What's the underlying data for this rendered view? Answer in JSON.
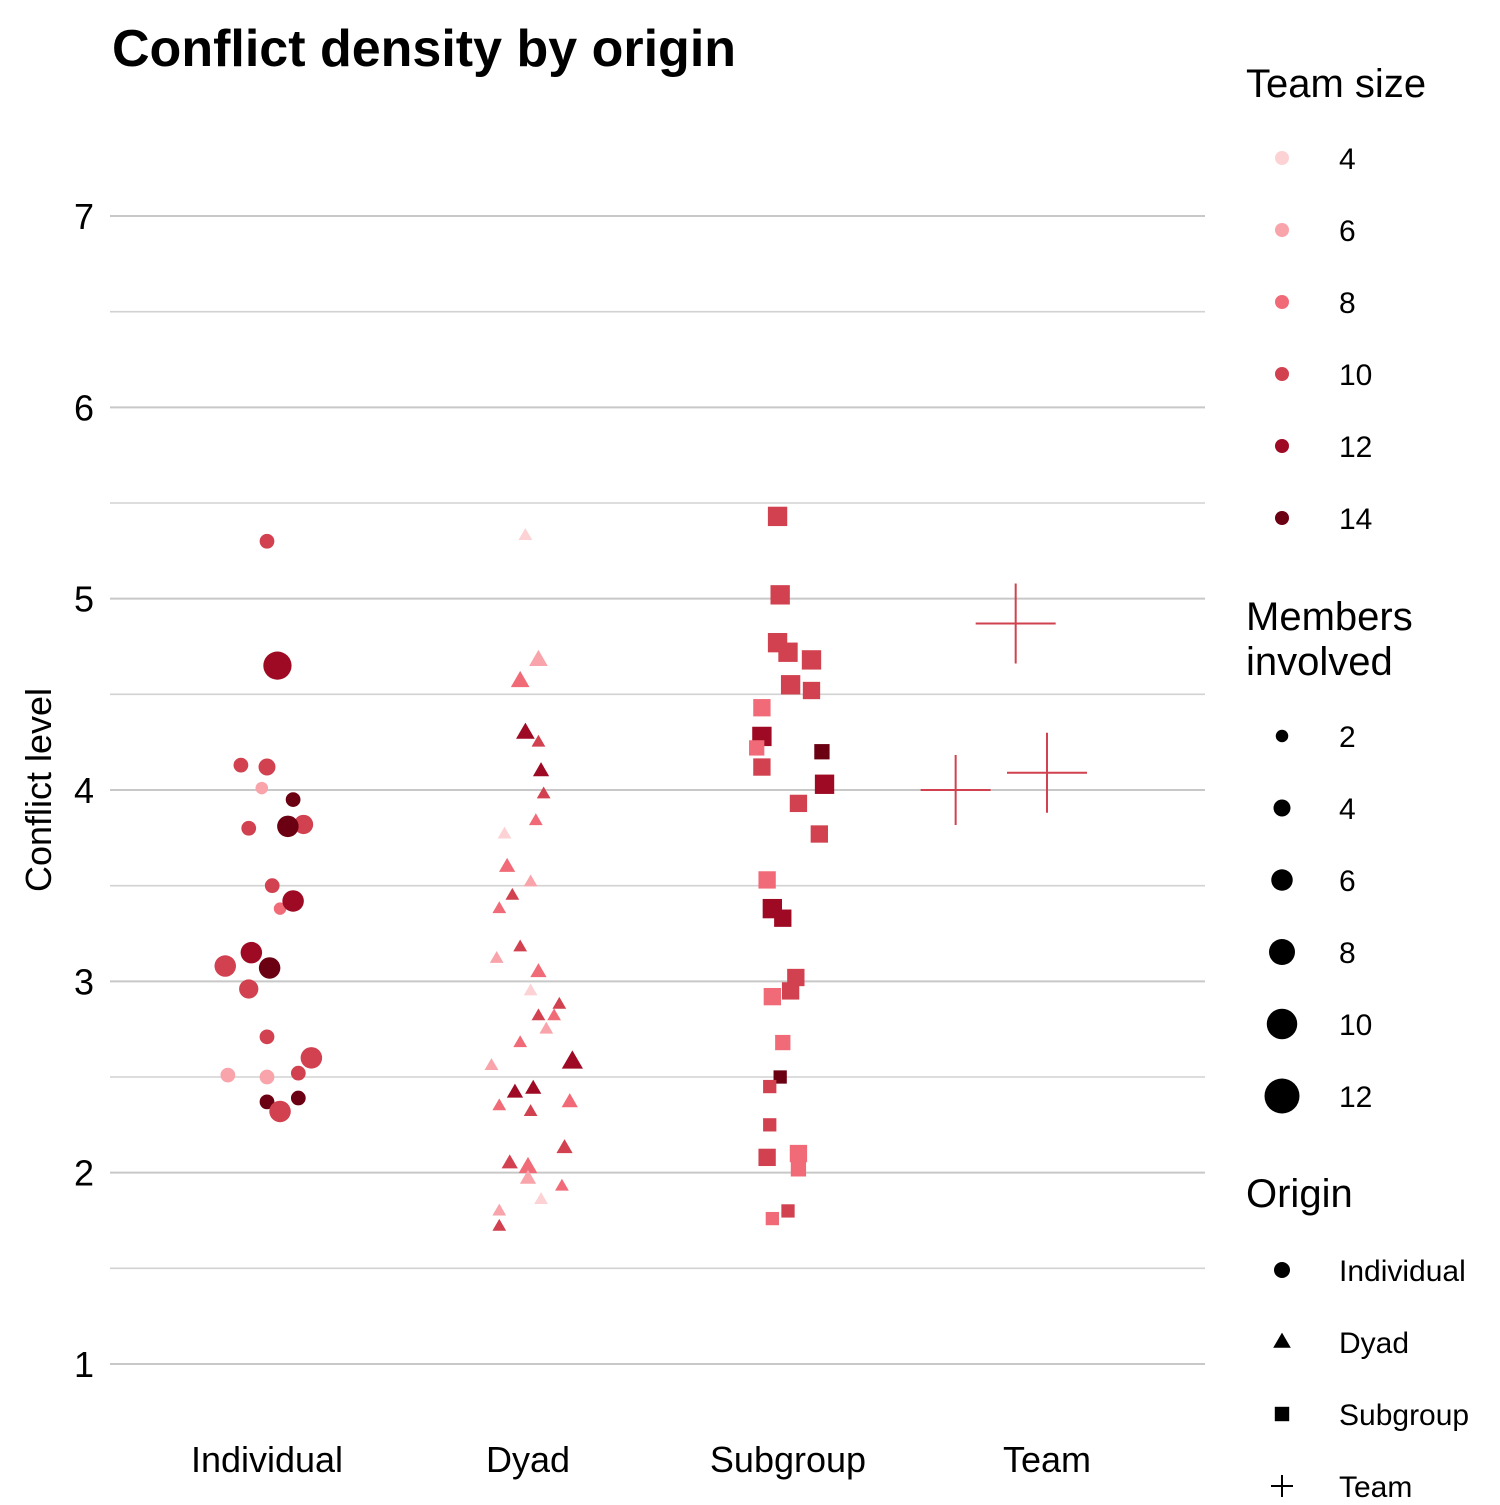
{
  "chart_data": {
    "type": "scatter",
    "title": "Conflict density by origin",
    "xlabel": "",
    "ylabel": "Conflict level",
    "x_categories": [
      "Individual",
      "Dyad",
      "Subgroup",
      "Team"
    ],
    "ylim": [
      0.55,
      7.55
    ],
    "y_ticks": [
      1,
      2,
      3,
      4,
      5,
      6,
      7
    ],
    "grid": "horizontal major and minor lines",
    "legend_position": "right",
    "legends": {
      "color": {
        "title": "Team size",
        "entries": [
          {
            "label": "4",
            "color": "#fdd2d5"
          },
          {
            "label": "6",
            "color": "#f9a3ab"
          },
          {
            "label": "8",
            "color": "#f06b77"
          },
          {
            "label": "10",
            "color": "#d1414f"
          },
          {
            "label": "12",
            "color": "#9e0a24"
          },
          {
            "label": "14",
            "color": "#6b0012"
          }
        ]
      },
      "size": {
        "title_line1": "Members",
        "title_line2": "involved",
        "entries": [
          {
            "label": "2",
            "value": 2
          },
          {
            "label": "4",
            "value": 4
          },
          {
            "label": "6",
            "value": 6
          },
          {
            "label": "8",
            "value": 8
          },
          {
            "label": "10",
            "value": 10
          },
          {
            "label": "12",
            "value": 12
          }
        ]
      },
      "shape": {
        "title": "Origin",
        "entries": [
          {
            "label": "Individual",
            "shape": "circle"
          },
          {
            "label": "Dyad",
            "shape": "triangle"
          },
          {
            "label": "Subgroup",
            "shape": "square"
          },
          {
            "label": "Team",
            "shape": "plus"
          }
        ]
      }
    },
    "points": [
      {
        "origin": "Individual",
        "x_offset": 0.0,
        "y": 5.3,
        "team_size": 10,
        "members": 3
      },
      {
        "origin": "Individual",
        "x_offset": 0.04,
        "y": 4.65,
        "team_size": 12,
        "members": 9
      },
      {
        "origin": "Individual",
        "x_offset": -0.1,
        "y": 4.13,
        "team_size": 10,
        "members": 3
      },
      {
        "origin": "Individual",
        "x_offset": 0.0,
        "y": 4.12,
        "team_size": 10,
        "members": 4
      },
      {
        "origin": "Individual",
        "x_offset": -0.02,
        "y": 4.01,
        "team_size": 6,
        "members": 2
      },
      {
        "origin": "Individual",
        "x_offset": 0.1,
        "y": 3.95,
        "team_size": 14,
        "members": 3
      },
      {
        "origin": "Individual",
        "x_offset": 0.14,
        "y": 3.82,
        "team_size": 10,
        "members": 5
      },
      {
        "origin": "Individual",
        "x_offset": -0.07,
        "y": 3.8,
        "team_size": 10,
        "members": 3
      },
      {
        "origin": "Individual",
        "x_offset": 0.08,
        "y": 3.81,
        "team_size": 14,
        "members": 6
      },
      {
        "origin": "Individual",
        "x_offset": 0.02,
        "y": 3.5,
        "team_size": 10,
        "members": 3
      },
      {
        "origin": "Individual",
        "x_offset": 0.05,
        "y": 3.38,
        "team_size": 8,
        "members": 2
      },
      {
        "origin": "Individual",
        "x_offset": 0.1,
        "y": 3.42,
        "team_size": 12,
        "members": 6
      },
      {
        "origin": "Individual",
        "x_offset": -0.06,
        "y": 3.15,
        "team_size": 12,
        "members": 6
      },
      {
        "origin": "Individual",
        "x_offset": -0.16,
        "y": 3.08,
        "team_size": 10,
        "members": 6
      },
      {
        "origin": "Individual",
        "x_offset": 0.01,
        "y": 3.07,
        "team_size": 14,
        "members": 6
      },
      {
        "origin": "Individual",
        "x_offset": -0.07,
        "y": 2.96,
        "team_size": 10,
        "members": 5
      },
      {
        "origin": "Individual",
        "x_offset": 0.0,
        "y": 2.71,
        "team_size": 10,
        "members": 3
      },
      {
        "origin": "Individual",
        "x_offset": 0.17,
        "y": 2.6,
        "team_size": 10,
        "members": 6
      },
      {
        "origin": "Individual",
        "x_offset": 0.12,
        "y": 2.52,
        "team_size": 10,
        "members": 3
      },
      {
        "origin": "Individual",
        "x_offset": -0.15,
        "y": 2.51,
        "team_size": 6,
        "members": 3
      },
      {
        "origin": "Individual",
        "x_offset": 0.0,
        "y": 2.5,
        "team_size": 6,
        "members": 3
      },
      {
        "origin": "Individual",
        "x_offset": 0.0,
        "y": 2.37,
        "team_size": 14,
        "members": 3
      },
      {
        "origin": "Individual",
        "x_offset": 0.05,
        "y": 2.32,
        "team_size": 10,
        "members": 6
      },
      {
        "origin": "Individual",
        "x_offset": 0.12,
        "y": 2.39,
        "team_size": 14,
        "members": 3
      },
      {
        "origin": "Dyad",
        "x_offset": -0.01,
        "y": 5.33,
        "team_size": 4,
        "members": 2
      },
      {
        "origin": "Dyad",
        "x_offset": 0.04,
        "y": 4.68,
        "team_size": 6,
        "members": 4
      },
      {
        "origin": "Dyad",
        "x_offset": -0.03,
        "y": 4.57,
        "team_size": 8,
        "members": 4
      },
      {
        "origin": "Dyad",
        "x_offset": -0.01,
        "y": 4.3,
        "team_size": 12,
        "members": 4
      },
      {
        "origin": "Dyad",
        "x_offset": 0.04,
        "y": 4.25,
        "team_size": 10,
        "members": 2
      },
      {
        "origin": "Dyad",
        "x_offset": 0.05,
        "y": 4.1,
        "team_size": 12,
        "members": 3
      },
      {
        "origin": "Dyad",
        "x_offset": 0.06,
        "y": 3.98,
        "team_size": 10,
        "members": 2
      },
      {
        "origin": "Dyad",
        "x_offset": 0.03,
        "y": 3.84,
        "team_size": 8,
        "members": 2
      },
      {
        "origin": "Dyad",
        "x_offset": -0.09,
        "y": 3.77,
        "team_size": 4,
        "members": 2
      },
      {
        "origin": "Dyad",
        "x_offset": -0.08,
        "y": 3.6,
        "team_size": 8,
        "members": 3
      },
      {
        "origin": "Dyad",
        "x_offset": 0.01,
        "y": 3.52,
        "team_size": 6,
        "members": 2
      },
      {
        "origin": "Dyad",
        "x_offset": -0.06,
        "y": 3.45,
        "team_size": 10,
        "members": 2
      },
      {
        "origin": "Dyad",
        "x_offset": -0.11,
        "y": 3.38,
        "team_size": 8,
        "members": 2
      },
      {
        "origin": "Dyad",
        "x_offset": -0.03,
        "y": 3.18,
        "team_size": 10,
        "members": 2
      },
      {
        "origin": "Dyad",
        "x_offset": -0.12,
        "y": 3.12,
        "team_size": 6,
        "members": 2
      },
      {
        "origin": "Dyad",
        "x_offset": 0.04,
        "y": 3.05,
        "team_size": 8,
        "members": 3
      },
      {
        "origin": "Dyad",
        "x_offset": 0.01,
        "y": 2.95,
        "team_size": 4,
        "members": 2
      },
      {
        "origin": "Dyad",
        "x_offset": 0.12,
        "y": 2.88,
        "team_size": 10,
        "members": 2
      },
      {
        "origin": "Dyad",
        "x_offset": 0.04,
        "y": 2.82,
        "team_size": 10,
        "members": 2
      },
      {
        "origin": "Dyad",
        "x_offset": 0.1,
        "y": 2.82,
        "team_size": 8,
        "members": 2
      },
      {
        "origin": "Dyad",
        "x_offset": 0.07,
        "y": 2.75,
        "team_size": 6,
        "members": 2
      },
      {
        "origin": "Dyad",
        "x_offset": -0.03,
        "y": 2.68,
        "team_size": 8,
        "members": 2
      },
      {
        "origin": "Dyad",
        "x_offset": 0.17,
        "y": 2.58,
        "team_size": 12,
        "members": 5
      },
      {
        "origin": "Dyad",
        "x_offset": -0.14,
        "y": 2.56,
        "team_size": 6,
        "members": 2
      },
      {
        "origin": "Dyad",
        "x_offset": 0.02,
        "y": 2.44,
        "team_size": 12,
        "members": 3
      },
      {
        "origin": "Dyad",
        "x_offset": -0.05,
        "y": 2.42,
        "team_size": 12,
        "members": 3
      },
      {
        "origin": "Dyad",
        "x_offset": 0.16,
        "y": 2.37,
        "team_size": 8,
        "members": 3
      },
      {
        "origin": "Dyad",
        "x_offset": -0.11,
        "y": 2.35,
        "team_size": 8,
        "members": 2
      },
      {
        "origin": "Dyad",
        "x_offset": 0.01,
        "y": 2.32,
        "team_size": 10,
        "members": 2
      },
      {
        "origin": "Dyad",
        "x_offset": 0.14,
        "y": 2.13,
        "team_size": 10,
        "members": 3
      },
      {
        "origin": "Dyad",
        "x_offset": -0.07,
        "y": 2.05,
        "team_size": 10,
        "members": 3
      },
      {
        "origin": "Dyad",
        "x_offset": 0.0,
        "y": 2.03,
        "team_size": 8,
        "members": 4
      },
      {
        "origin": "Dyad",
        "x_offset": 0.0,
        "y": 1.97,
        "team_size": 6,
        "members": 3
      },
      {
        "origin": "Dyad",
        "x_offset": 0.13,
        "y": 1.93,
        "team_size": 8,
        "members": 2
      },
      {
        "origin": "Dyad",
        "x_offset": 0.05,
        "y": 1.86,
        "team_size": 4,
        "members": 2
      },
      {
        "origin": "Dyad",
        "x_offset": -0.11,
        "y": 1.8,
        "team_size": 6,
        "members": 2
      },
      {
        "origin": "Dyad",
        "x_offset": -0.11,
        "y": 1.72,
        "team_size": 10,
        "members": 2
      },
      {
        "origin": "Subgroup",
        "x_offset": -0.04,
        "y": 5.43,
        "team_size": 10,
        "members": 6
      },
      {
        "origin": "Subgroup",
        "x_offset": -0.03,
        "y": 5.02,
        "team_size": 10,
        "members": 6
      },
      {
        "origin": "Subgroup",
        "x_offset": -0.04,
        "y": 4.77,
        "team_size": 10,
        "members": 6
      },
      {
        "origin": "Subgroup",
        "x_offset": 0.0,
        "y": 4.72,
        "team_size": 10,
        "members": 6
      },
      {
        "origin": "Subgroup",
        "x_offset": 0.09,
        "y": 4.68,
        "team_size": 10,
        "members": 6
      },
      {
        "origin": "Subgroup",
        "x_offset": 0.01,
        "y": 4.55,
        "team_size": 10,
        "members": 6
      },
      {
        "origin": "Subgroup",
        "x_offset": 0.09,
        "y": 4.52,
        "team_size": 10,
        "members": 5
      },
      {
        "origin": "Subgroup",
        "x_offset": -0.1,
        "y": 4.43,
        "team_size": 8,
        "members": 5
      },
      {
        "origin": "Subgroup",
        "x_offset": -0.1,
        "y": 4.28,
        "team_size": 12,
        "members": 6
      },
      {
        "origin": "Subgroup",
        "x_offset": -0.12,
        "y": 4.22,
        "team_size": 8,
        "members": 4
      },
      {
        "origin": "Subgroup",
        "x_offset": -0.1,
        "y": 4.12,
        "team_size": 10,
        "members": 5
      },
      {
        "origin": "Subgroup",
        "x_offset": 0.13,
        "y": 4.2,
        "team_size": 14,
        "members": 4
      },
      {
        "origin": "Subgroup",
        "x_offset": 0.14,
        "y": 4.03,
        "team_size": 12,
        "members": 6
      },
      {
        "origin": "Subgroup",
        "x_offset": 0.04,
        "y": 3.93,
        "team_size": 10,
        "members": 5
      },
      {
        "origin": "Subgroup",
        "x_offset": 0.12,
        "y": 3.77,
        "team_size": 10,
        "members": 5
      },
      {
        "origin": "Subgroup",
        "x_offset": -0.08,
        "y": 3.53,
        "team_size": 8,
        "members": 5
      },
      {
        "origin": "Subgroup",
        "x_offset": -0.06,
        "y": 3.38,
        "team_size": 12,
        "members": 6
      },
      {
        "origin": "Subgroup",
        "x_offset": -0.02,
        "y": 3.33,
        "team_size": 12,
        "members": 5
      },
      {
        "origin": "Subgroup",
        "x_offset": 0.03,
        "y": 3.02,
        "team_size": 10,
        "members": 5
      },
      {
        "origin": "Subgroup",
        "x_offset": -0.06,
        "y": 2.92,
        "team_size": 8,
        "members": 5
      },
      {
        "origin": "Subgroup",
        "x_offset": 0.01,
        "y": 2.95,
        "team_size": 10,
        "members": 5
      },
      {
        "origin": "Subgroup",
        "x_offset": -0.02,
        "y": 2.68,
        "team_size": 8,
        "members": 4
      },
      {
        "origin": "Subgroup",
        "x_offset": -0.03,
        "y": 2.5,
        "team_size": 14,
        "members": 3
      },
      {
        "origin": "Subgroup",
        "x_offset": -0.07,
        "y": 2.45,
        "team_size": 10,
        "members": 3
      },
      {
        "origin": "Subgroup",
        "x_offset": -0.07,
        "y": 2.25,
        "team_size": 10,
        "members": 3
      },
      {
        "origin": "Subgroup",
        "x_offset": -0.08,
        "y": 2.08,
        "team_size": 10,
        "members": 5
      },
      {
        "origin": "Subgroup",
        "x_offset": 0.04,
        "y": 2.02,
        "team_size": 8,
        "members": 4
      },
      {
        "origin": "Subgroup",
        "x_offset": 0.04,
        "y": 2.1,
        "team_size": 8,
        "members": 5
      },
      {
        "origin": "Subgroup",
        "x_offset": 0.0,
        "y": 1.8,
        "team_size": 10,
        "members": 3
      },
      {
        "origin": "Subgroup",
        "x_offset": -0.06,
        "y": 1.76,
        "team_size": 8,
        "members": 3
      },
      {
        "origin": "Team",
        "x_offset": -0.12,
        "y": 4.87,
        "team_size": 10,
        "members": 8
      },
      {
        "origin": "Team",
        "x_offset": -0.35,
        "y": 4.0,
        "team_size": 10,
        "members": 7
      },
      {
        "origin": "Team",
        "x_offset": 0.0,
        "y": 4.09,
        "team_size": 10,
        "members": 8
      }
    ]
  }
}
